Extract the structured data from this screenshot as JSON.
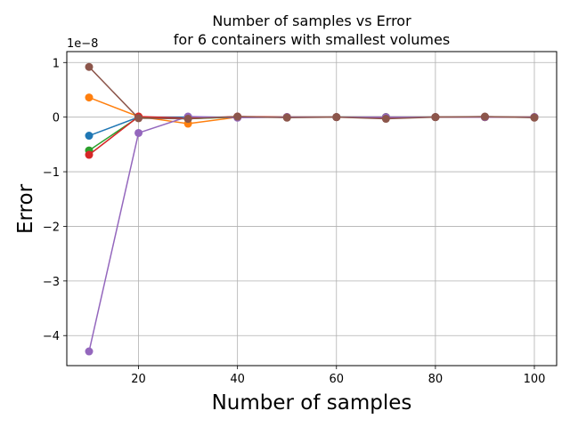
{
  "chart_data": {
    "type": "line",
    "title": [
      "Number of samples vs Error",
      "for 6 containers with smallest volumes"
    ],
    "xlabel": "Number of samples",
    "ylabel": "Error",
    "y_offset_text": "1e−8",
    "y_scale_factor": 1e-08,
    "xlim": [
      5.5,
      104.5
    ],
    "ylim": [
      -4.55,
      1.2
    ],
    "xticks": [
      20,
      40,
      60,
      80,
      100
    ],
    "yticks": [
      -4,
      -3,
      -2,
      -1,
      0,
      1
    ],
    "ytick_labels": [
      "−4",
      "−3",
      "−2",
      "−1",
      "0",
      "1"
    ],
    "grid": true,
    "legend": "none",
    "x": [
      10,
      20,
      30,
      40,
      50,
      60,
      70,
      80,
      90,
      100
    ],
    "series": [
      {
        "color": "#1f77b4",
        "values": [
          -0.34,
          0.0,
          0.0,
          0.0,
          0.0,
          0.0,
          0.0,
          0.0,
          0.0,
          0.0
        ]
      },
      {
        "color": "#ff7f0e",
        "values": [
          0.36,
          0.01,
          -0.12,
          0.0,
          0.0,
          0.0,
          0.0,
          0.0,
          0.0,
          0.0
        ]
      },
      {
        "color": "#2ca02c",
        "values": [
          -0.61,
          0.0,
          -0.03,
          0.0,
          0.0,
          0.0,
          0.0,
          0.0,
          0.0,
          0.0
        ]
      },
      {
        "color": "#d62728",
        "values": [
          -0.69,
          0.01,
          -0.02,
          0.01,
          0.0,
          0.0,
          -0.01,
          0.0,
          0.0,
          0.0
        ]
      },
      {
        "color": "#9467bd",
        "values": [
          -4.29,
          -0.29,
          0.01,
          -0.01,
          0.0,
          0.0,
          0.0,
          0.0,
          0.0,
          0.0
        ]
      },
      {
        "color": "#8c564b",
        "values": [
          0.92,
          -0.02,
          -0.03,
          0.01,
          -0.01,
          0.0,
          -0.03,
          0.0,
          0.01,
          -0.01
        ]
      }
    ]
  }
}
